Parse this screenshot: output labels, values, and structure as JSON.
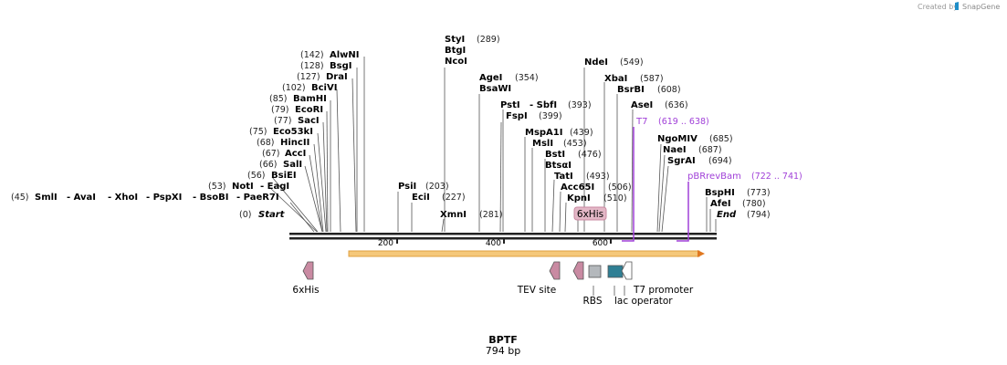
{
  "credit": {
    "prefix": "Created by",
    "brand": "SnapGene"
  },
  "plasmid": {
    "name": "BPTF",
    "length": "794 bp"
  },
  "axis": {
    "ticks": [
      "200",
      "400",
      "600"
    ]
  },
  "sites": [
    {
      "name": "SmlI",
      "pos": "(45)"
    },
    {
      "name": "- AvaI",
      "pos": ""
    },
    {
      "name": "- XhoI",
      "pos": ""
    },
    {
      "name": "- PspXI",
      "pos": ""
    },
    {
      "name": "- BsoBI",
      "pos": ""
    },
    {
      "name": "- PaeR7I",
      "pos": ""
    },
    {
      "name": "NotI",
      "pos": "(53)"
    },
    {
      "name": "- EagI",
      "pos": ""
    },
    {
      "name": "BsiEI",
      "pos": "(56)"
    },
    {
      "name": "SalI",
      "pos": "(66)"
    },
    {
      "name": "AccI",
      "pos": "(67)"
    },
    {
      "name": "HincII",
      "pos": "(68)"
    },
    {
      "name": "Eco53kI",
      "pos": "(75)"
    },
    {
      "name": "SacI",
      "pos": "(77)"
    },
    {
      "name": "EcoRI",
      "pos": "(79)"
    },
    {
      "name": "BamHI",
      "pos": "(85)"
    },
    {
      "name": "BciVI",
      "pos": "(102)"
    },
    {
      "name": "DraI",
      "pos": "(127)"
    },
    {
      "name": "BsgI",
      "pos": "(128)"
    },
    {
      "name": "AlwNI",
      "pos": "(142)"
    },
    {
      "name": "Start",
      "pos": "(0)"
    },
    {
      "name": "PsiI",
      "pos": "(203)"
    },
    {
      "name": "EciI",
      "pos": "(227)"
    },
    {
      "name": "XmnI",
      "pos": "(281)"
    },
    {
      "name": "StyI",
      "pos": "(289)"
    },
    {
      "name": "BtgI",
      "pos": ""
    },
    {
      "name": "NcoI",
      "pos": ""
    },
    {
      "name": "AgeI",
      "pos": "(354)"
    },
    {
      "name": "BsaWI",
      "pos": ""
    },
    {
      "name": "PstI",
      "pos": ""
    },
    {
      "name": "- SbfI",
      "pos": "(393)"
    },
    {
      "name": "FspI",
      "pos": "(399)"
    },
    {
      "name": "MspA1I",
      "pos": "(439)"
    },
    {
      "name": "MslI",
      "pos": "(453)"
    },
    {
      "name": "BstI",
      "pos": "(476)"
    },
    {
      "name": "BtsαI",
      "pos": ""
    },
    {
      "name": "TatI",
      "pos": "(493)"
    },
    {
      "name": "Acc65I",
      "pos": "(506)"
    },
    {
      "name": "KpnI",
      "pos": "(510)"
    },
    {
      "name": "NdeI",
      "pos": "(549)"
    },
    {
      "name": "XbaI",
      "pos": "(587)"
    },
    {
      "name": "BsrBI",
      "pos": "(608)"
    },
    {
      "name": "AseI",
      "pos": "(636)"
    },
    {
      "name": "NgoMIV",
      "pos": "(685)"
    },
    {
      "name": "NaeI",
      "pos": "(687)"
    },
    {
      "name": "SgrAI",
      "pos": "(694)"
    },
    {
      "name": "BspHI",
      "pos": "(773)"
    },
    {
      "name": "AfeI",
      "pos": "(780)"
    },
    {
      "name": "End",
      "pos": "(794)"
    }
  ],
  "primers": [
    {
      "name": "T7",
      "range": "(619 .. 638)"
    },
    {
      "name": "pBRrevBam",
      "range": "(722 .. 741)"
    }
  ],
  "features": {
    "his_tag_box": "6xHis",
    "his_left": "6xHis",
    "tev": "TEV site",
    "rbs": "RBS",
    "t7_promoter": "T7 promoter",
    "lac_operator": "lac operator"
  },
  "colors": {
    "backbone": "#222222",
    "orf_fill": "#f5c87a",
    "orf_edge": "#e0a040",
    "his": "#c98aa2",
    "rbs": "#b4b8bc",
    "promoter": "#ffffff",
    "operator": "#2f7f94",
    "primer": "#a040d8"
  }
}
